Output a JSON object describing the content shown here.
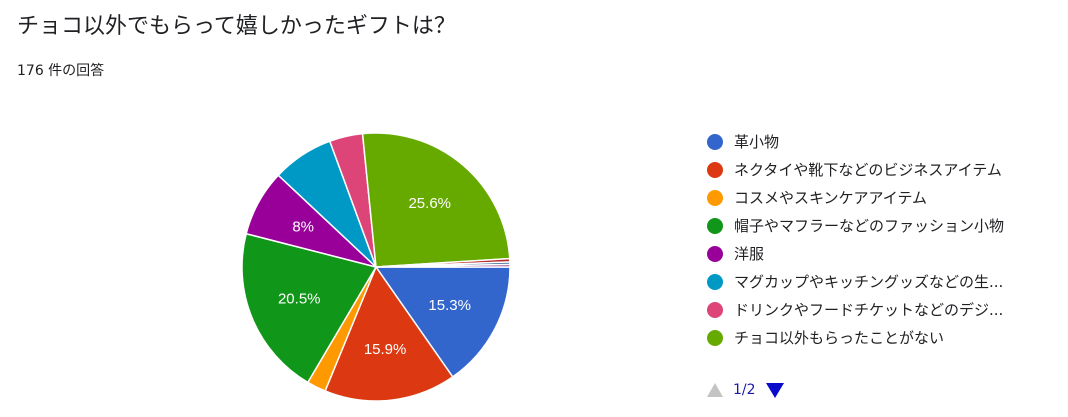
{
  "header": {
    "title": "チョコ以外でもらって嬉しかったギフトは？",
    "response_count": "176 件の回答"
  },
  "chart_data": {
    "type": "pie",
    "categories": [
      "革小物",
      "ネクタイや靴下などのビジネスアイテム",
      "コスメやスキンケアアイテム",
      "帽子やマフラーなどのファッション小物",
      "洋服",
      "マグカップやキッチングッズなどの生...",
      "ドリンクやフードチケットなどのデジ...",
      "チョコ以外もらったことがない",
      "",
      "",
      ""
    ],
    "values": [
      15.3,
      15.9,
      2.3,
      20.5,
      8,
      7.4,
      4,
      25.6,
      0.4,
      0.3,
      0.3
    ],
    "value_labels": [
      "15.3%",
      "15.9%",
      "",
      "20.5%",
      "8%",
      "",
      "",
      "25.6%",
      "",
      "",
      ""
    ],
    "colors": [
      "#3366cc",
      "#dc3912",
      "#ff9900",
      "#109618",
      "#990099",
      "#0099c6",
      "#dd4477",
      "#66aa00",
      "#b82e2e",
      "#316395",
      "#994499"
    ],
    "start_angle_deg": 90,
    "direction": "clockwise",
    "legend_position": "right"
  },
  "legend": {
    "page_indicator": "1/2"
  }
}
